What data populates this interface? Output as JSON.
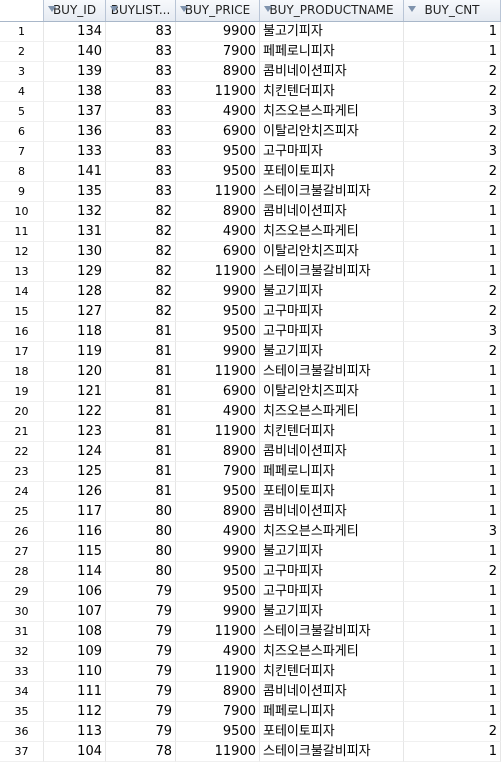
{
  "columns": [
    "BUY_ID",
    "BUYLIST...",
    "BUY_PRICE",
    "BUY_PRODUCTNAME",
    "BUY_CNT"
  ],
  "rows": [
    [
      "1",
      "134",
      "83",
      "9900",
      "불고기피자",
      "1"
    ],
    [
      "2",
      "140",
      "83",
      "7900",
      "페페로니피자",
      "1"
    ],
    [
      "3",
      "139",
      "83",
      "8900",
      "콤비네이션피자",
      "2"
    ],
    [
      "4",
      "138",
      "83",
      "11900",
      "치킨텐더피자",
      "2"
    ],
    [
      "5",
      "137",
      "83",
      "4900",
      "치즈오븐스파게티",
      "3"
    ],
    [
      "6",
      "136",
      "83",
      "6900",
      "이탈리안치즈피자",
      "2"
    ],
    [
      "7",
      "133",
      "83",
      "9500",
      "고구마피자",
      "3"
    ],
    [
      "8",
      "141",
      "83",
      "9500",
      "포테이토피자",
      "2"
    ],
    [
      "9",
      "135",
      "83",
      "11900",
      "스테이크불갈비피자",
      "2"
    ],
    [
      "10",
      "132",
      "82",
      "8900",
      "콤비네이션피자",
      "1"
    ],
    [
      "11",
      "131",
      "82",
      "4900",
      "치즈오븐스파게티",
      "1"
    ],
    [
      "12",
      "130",
      "82",
      "6900",
      "이탈리안치즈피자",
      "1"
    ],
    [
      "13",
      "129",
      "82",
      "11900",
      "스테이크불갈비피자",
      "1"
    ],
    [
      "14",
      "128",
      "82",
      "9900",
      "불고기피자",
      "2"
    ],
    [
      "15",
      "127",
      "82",
      "9500",
      "고구마피자",
      "2"
    ],
    [
      "16",
      "118",
      "81",
      "9500",
      "고구마피자",
      "3"
    ],
    [
      "17",
      "119",
      "81",
      "9900",
      "불고기피자",
      "2"
    ],
    [
      "18",
      "120",
      "81",
      "11900",
      "스테이크불갈비피자",
      "1"
    ],
    [
      "19",
      "121",
      "81",
      "6900",
      "이탈리안치즈피자",
      "1"
    ],
    [
      "20",
      "122",
      "81",
      "4900",
      "치즈오븐스파게티",
      "1"
    ],
    [
      "21",
      "123",
      "81",
      "11900",
      "치킨텐더피자",
      "1"
    ],
    [
      "22",
      "124",
      "81",
      "8900",
      "콤비네이션피자",
      "1"
    ],
    [
      "23",
      "125",
      "81",
      "7900",
      "페페로니피자",
      "1"
    ],
    [
      "24",
      "126",
      "81",
      "9500",
      "포테이토피자",
      "1"
    ],
    [
      "25",
      "117",
      "80",
      "8900",
      "콤비네이션피자",
      "1"
    ],
    [
      "26",
      "116",
      "80",
      "4900",
      "치즈오븐스파게티",
      "3"
    ],
    [
      "27",
      "115",
      "80",
      "9900",
      "불고기피자",
      "1"
    ],
    [
      "28",
      "114",
      "80",
      "9500",
      "고구마피자",
      "2"
    ],
    [
      "29",
      "106",
      "79",
      "9500",
      "고구마피자",
      "1"
    ],
    [
      "30",
      "107",
      "79",
      "9900",
      "불고기피자",
      "1"
    ],
    [
      "31",
      "108",
      "79",
      "11900",
      "스테이크불갈비피자",
      "1"
    ],
    [
      "32",
      "109",
      "79",
      "4900",
      "치즈오븐스파게티",
      "1"
    ],
    [
      "33",
      "110",
      "79",
      "11900",
      "치킨텐더피자",
      "1"
    ],
    [
      "34",
      "111",
      "79",
      "8900",
      "콤비네이션피자",
      "1"
    ],
    [
      "35",
      "112",
      "79",
      "7900",
      "페페로니피자",
      "1"
    ],
    [
      "36",
      "113",
      "79",
      "9500",
      "포테이토피자",
      "2"
    ],
    [
      "37",
      "104",
      "78",
      "11900",
      "스테이크불갈비피자",
      "1"
    ]
  ]
}
